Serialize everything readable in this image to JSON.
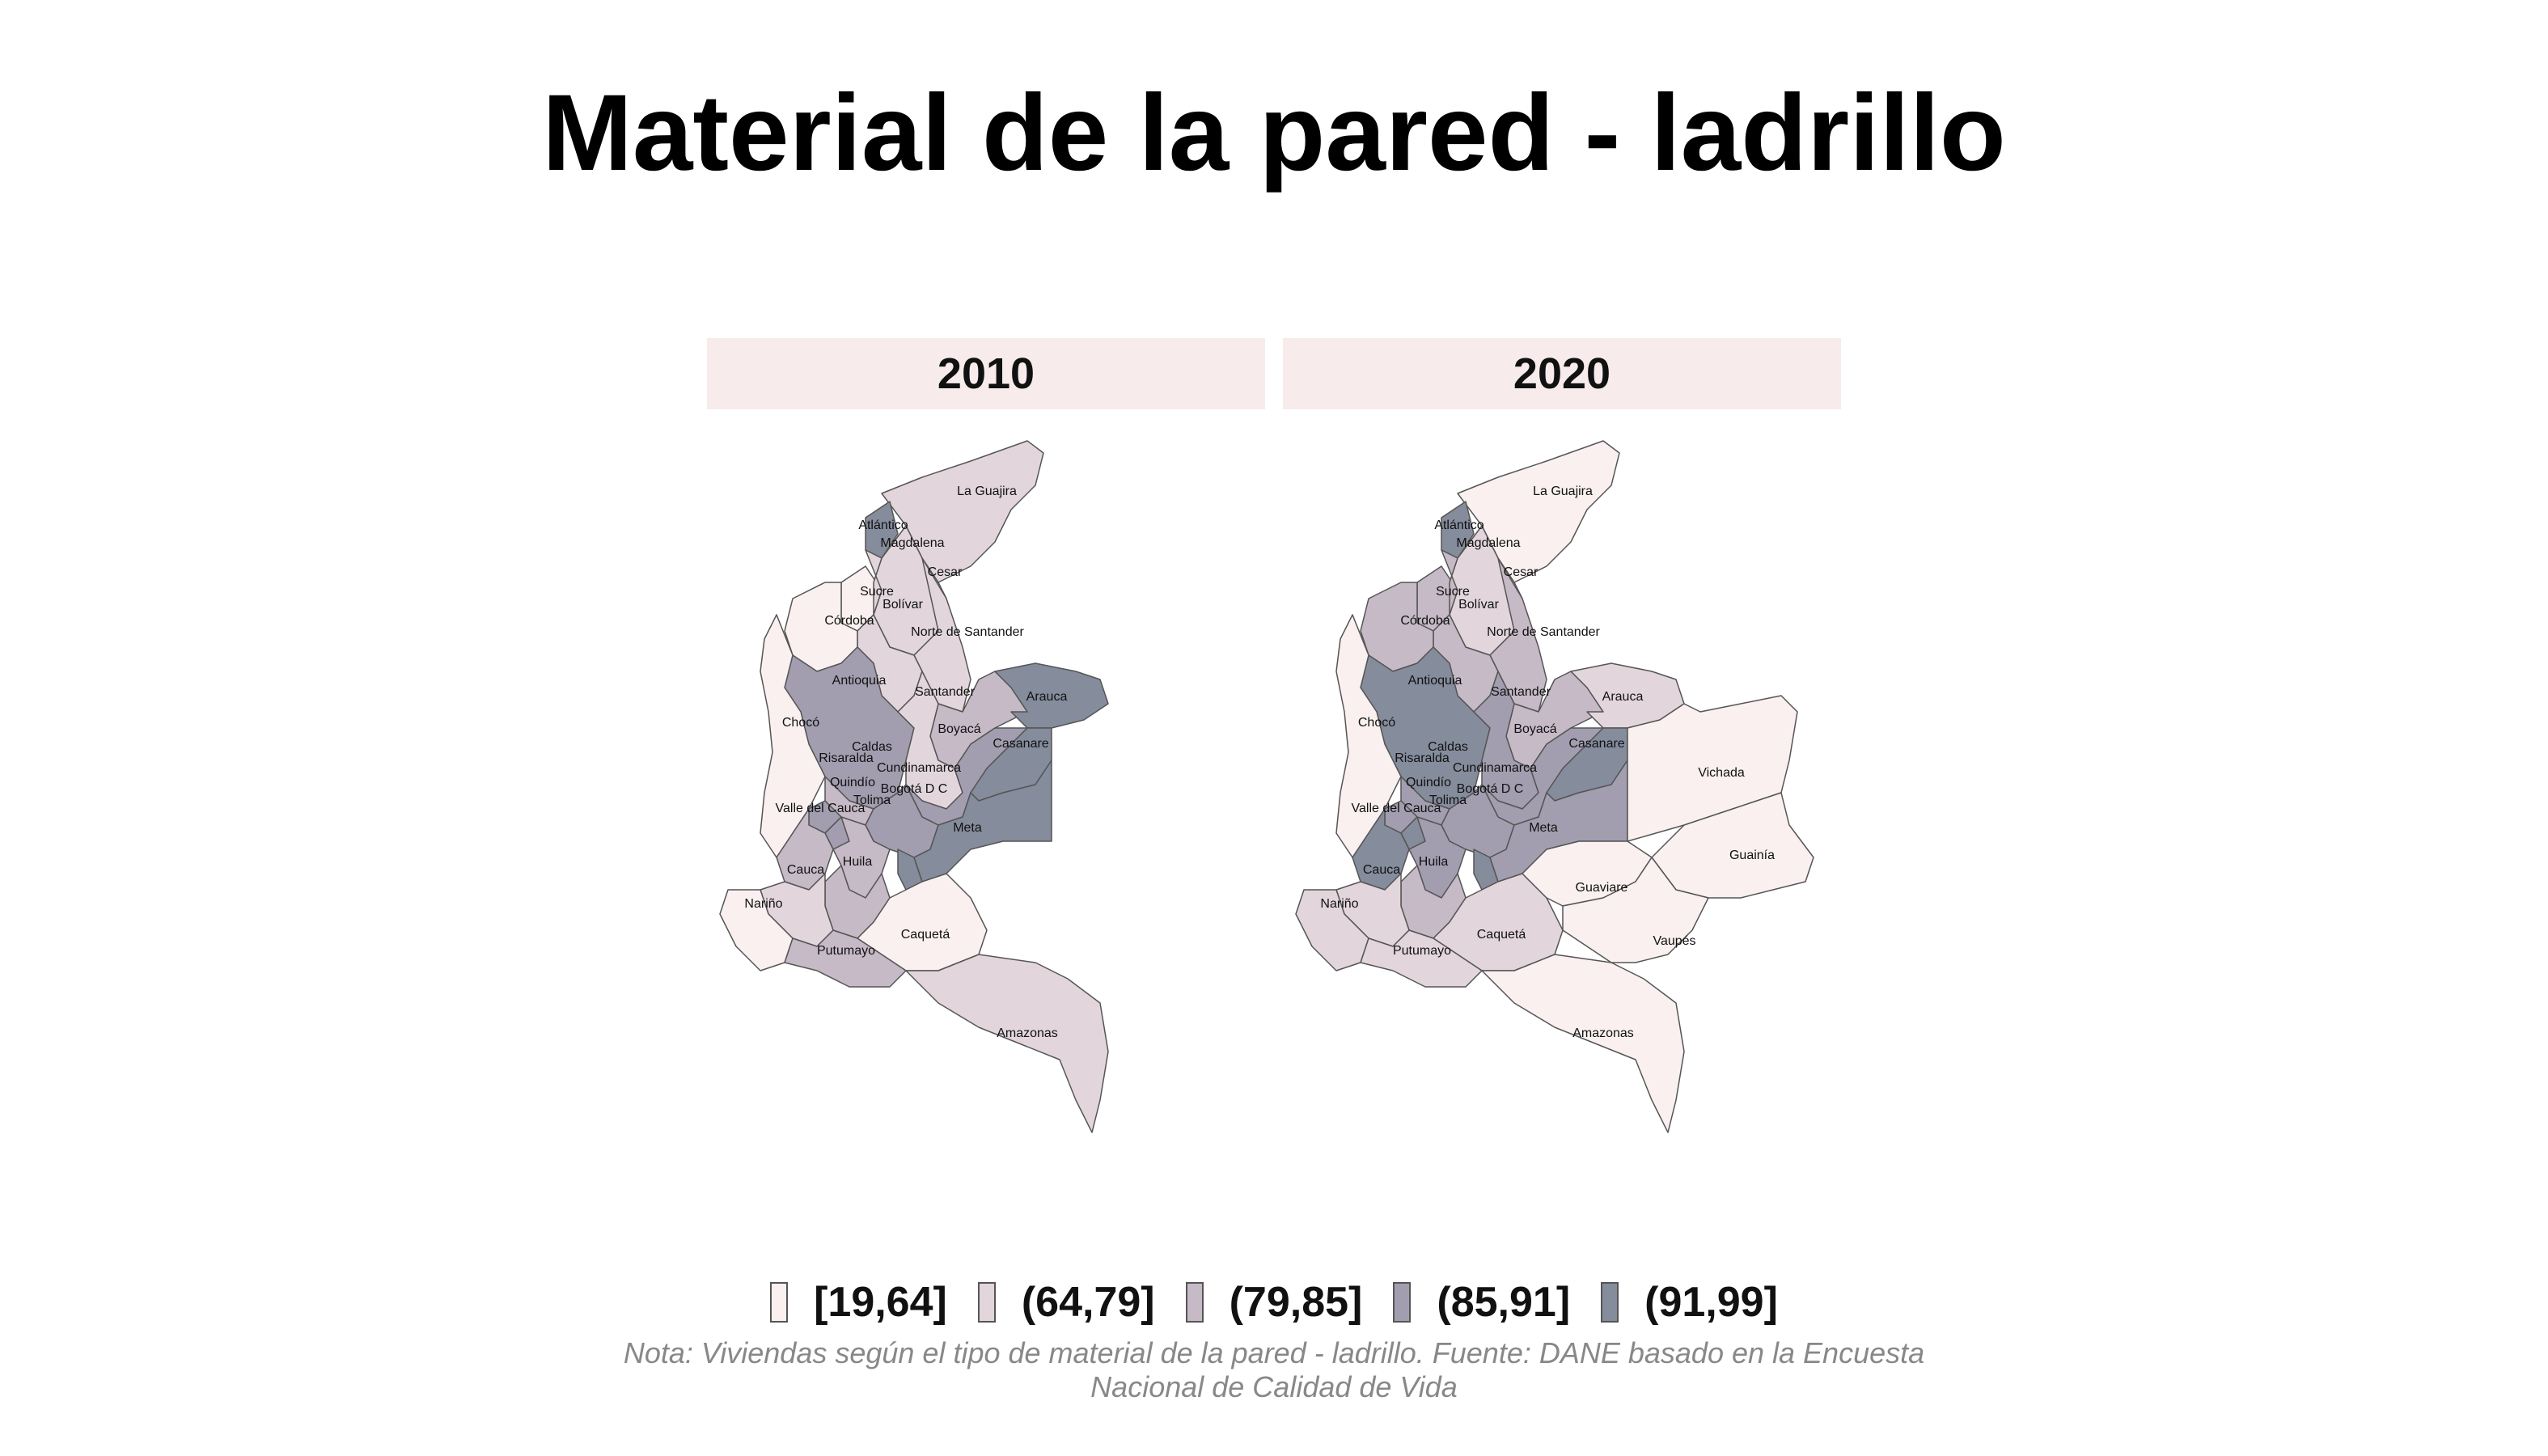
{
  "title": "Material de la pared - ladrillo",
  "panels": [
    {
      "label": "2010"
    },
    {
      "label": "2020"
    }
  ],
  "legend": [
    {
      "label": "[19,64]",
      "color": "#faf0f0"
    },
    {
      "label": "(64,79]",
      "color": "#e2d6dc"
    },
    {
      "label": "(79,85]",
      "color": "#c6bac6"
    },
    {
      "label": "(85,91]",
      "color": "#a29eb0"
    },
    {
      "label": "(91,99]",
      "color": "#858c9c"
    }
  ],
  "note": "Nota: Viviendas según el tipo de material de la pared - ladrillo. Fuente: DANE basado en la Encuesta Nacional de Calidad de Vida",
  "map_data": {
    "2010": {
      "La Guajira": "(64,79]",
      "Atlántico": "(91,99]",
      "Magdalena": "(64,79]",
      "Cesar": "(64,79]",
      "Sucre": "[19,64]",
      "Bolívar": "(64,79]",
      "Córdoba": "[19,64]",
      "Norte de Santander": "(79,85]",
      "Antioquia": "(85,91]",
      "Santander": "(64,79]",
      "Arauca": "(91,99]",
      "Chocó": "[19,64]",
      "Boyacá": "(85,91]",
      "Casanare": "(91,99]",
      "Caldas": "(79,85]",
      "Risaralda": "(85,91]",
      "Cundinamarca": "(85,91]",
      "Quindío": "(85,91]",
      "Bogotá D C": "(91,99]",
      "Tolima": "(79,85]",
      "Valle del Cauca": "(79,85]",
      "Meta": "(91,99]",
      "Huila": "(79,85]",
      "Cauca": "(64,79]",
      "Nariño": "[19,64]",
      "Caquetá": "[19,64]",
      "Putumayo": "(79,85]",
      "Amazonas": "(64,79]"
    },
    "2020": {
      "La Guajira": "[19,64]",
      "Atlántico": "(91,99]",
      "Magdalena": "(64,79]",
      "Cesar": "(79,85]",
      "Sucre": "(79,85]",
      "Bolívar": "(79,85]",
      "Córdoba": "(79,85]",
      "Norte de Santander": "(79,85]",
      "Antioquia": "(91,99]",
      "Santander": "(85,91]",
      "Arauca": "(64,79]",
      "Chocó": "[19,64]",
      "Boyacá": "(85,91]",
      "Casanare": "(91,99]",
      "Caldas": "(85,91]",
      "Risaralda": "(85,91]",
      "Cundinamarca": "(85,91]",
      "Quindío": "(91,99]",
      "Bogotá D C": "(91,99]",
      "Tolima": "(85,91]",
      "Valle del Cauca": "(91,99]",
      "Meta": "(85,91]",
      "Huila": "(79,85]",
      "Cauca": "(64,79]",
      "Nariño": "(64,79]",
      "Caquetá": "(64,79]",
      "Putumayo": "(64,79]",
      "Amazonas": "[19,64]",
      "Vichada": "[19,64]",
      "Guainía": "[19,64]",
      "Guaviare": "[19,64]",
      "Vaupés": "[19,64]"
    }
  }
}
